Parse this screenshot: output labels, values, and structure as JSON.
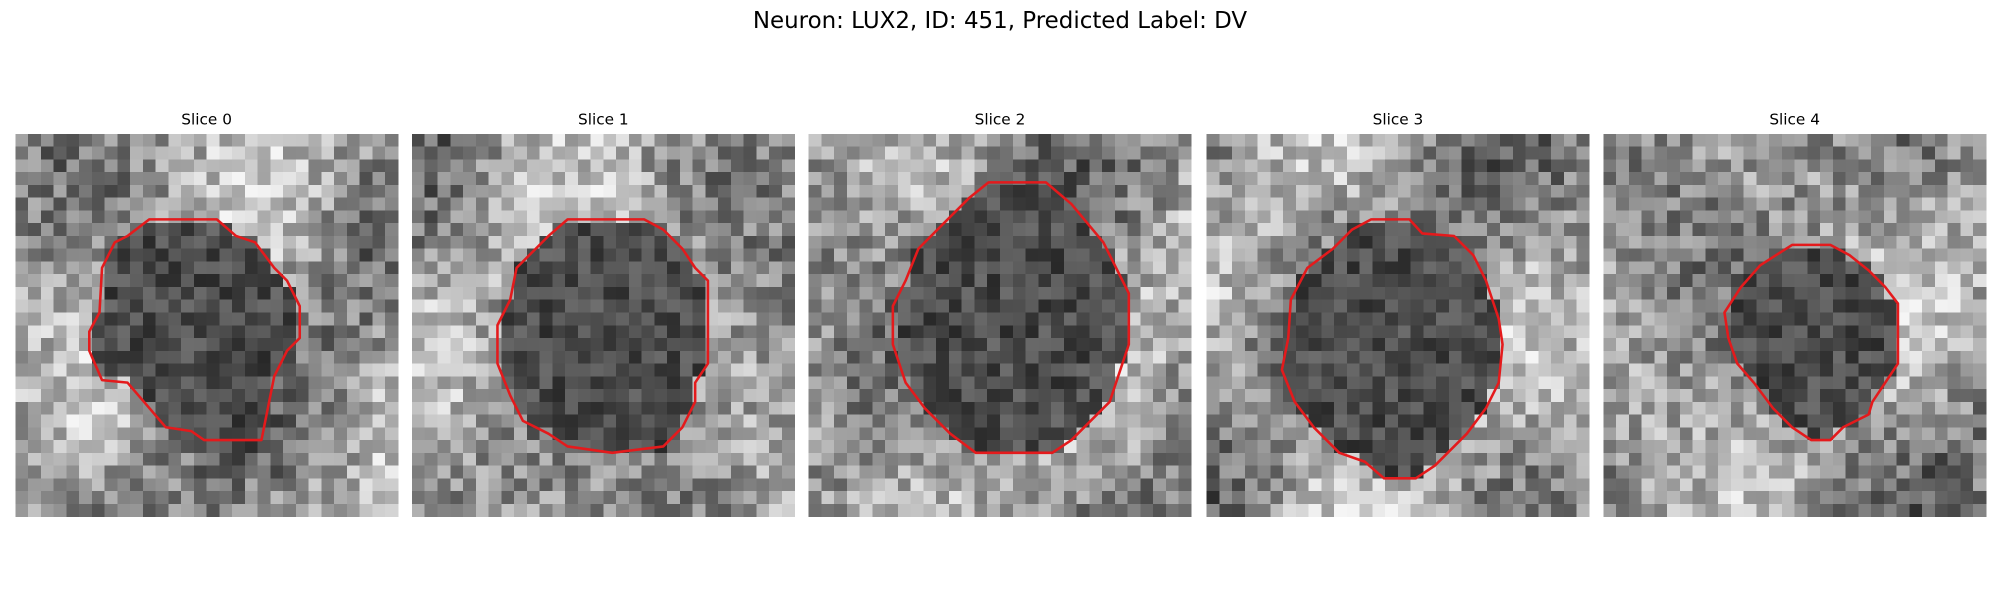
{
  "title": "Neuron: LUX2, ID: 451, Predicted Label: DV",
  "panels": [
    {
      "title": "Slice 0"
    },
    {
      "title": "Slice 1"
    },
    {
      "title": "Slice 2"
    },
    {
      "title": "Slice 3"
    },
    {
      "title": "Slice 4"
    }
  ]
}
